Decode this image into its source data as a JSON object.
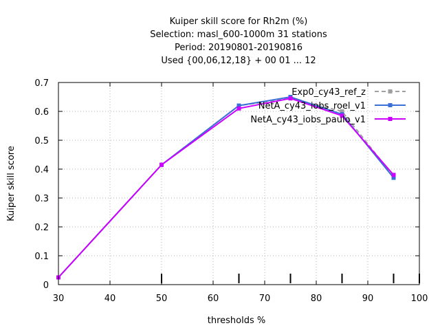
{
  "chart_data": {
    "type": "line",
    "title_lines": [
      "Kuiper skill score  for Rh2m (%)",
      "Selection: masl_600-1000m     31 stations",
      "Period: 20190801-20190816",
      "Used {00,06,12,18} + 00 01 ... 12"
    ],
    "xlabel": "thresholds %",
    "ylabel": "Kuiper skill score",
    "xlim": [
      30,
      100
    ],
    "ylim": [
      0,
      0.7
    ],
    "xticks": [
      30,
      40,
      50,
      60,
      70,
      80,
      90,
      100
    ],
    "yticks": [
      0,
      0.1,
      0.2,
      0.3,
      0.4,
      0.5,
      0.6,
      0.7
    ],
    "ytick_labels": [
      "0",
      "0.1",
      "0.2",
      "0.3",
      "0.4",
      "0.5",
      "0.6",
      "0.7"
    ],
    "grid": true,
    "legend_position": "top-right",
    "threshold_markers": [
      50,
      65,
      75,
      85,
      95,
      100
    ],
    "series": [
      {
        "name": "Exp0_cy43_ref_z",
        "color": "#a0a0a0",
        "dashed": true,
        "x": [
          30,
          50,
          65,
          75,
          85,
          95
        ],
        "y": [
          0.025,
          0.415,
          0.62,
          0.645,
          0.6,
          0.375
        ]
      },
      {
        "name": "NetA_cy43_iobs_roel_v1",
        "color": "#3a6fd8",
        "dashed": false,
        "x": [
          30,
          50,
          65,
          75,
          85,
          95
        ],
        "y": [
          0.025,
          0.415,
          0.62,
          0.65,
          0.59,
          0.37
        ]
      },
      {
        "name": "NetA_cy43_iobs_paulo_v1",
        "color": "#cc00ff",
        "dashed": false,
        "x": [
          30,
          50,
          65,
          75,
          85,
          95
        ],
        "y": [
          0.025,
          0.415,
          0.61,
          0.645,
          0.585,
          0.38
        ]
      }
    ]
  }
}
